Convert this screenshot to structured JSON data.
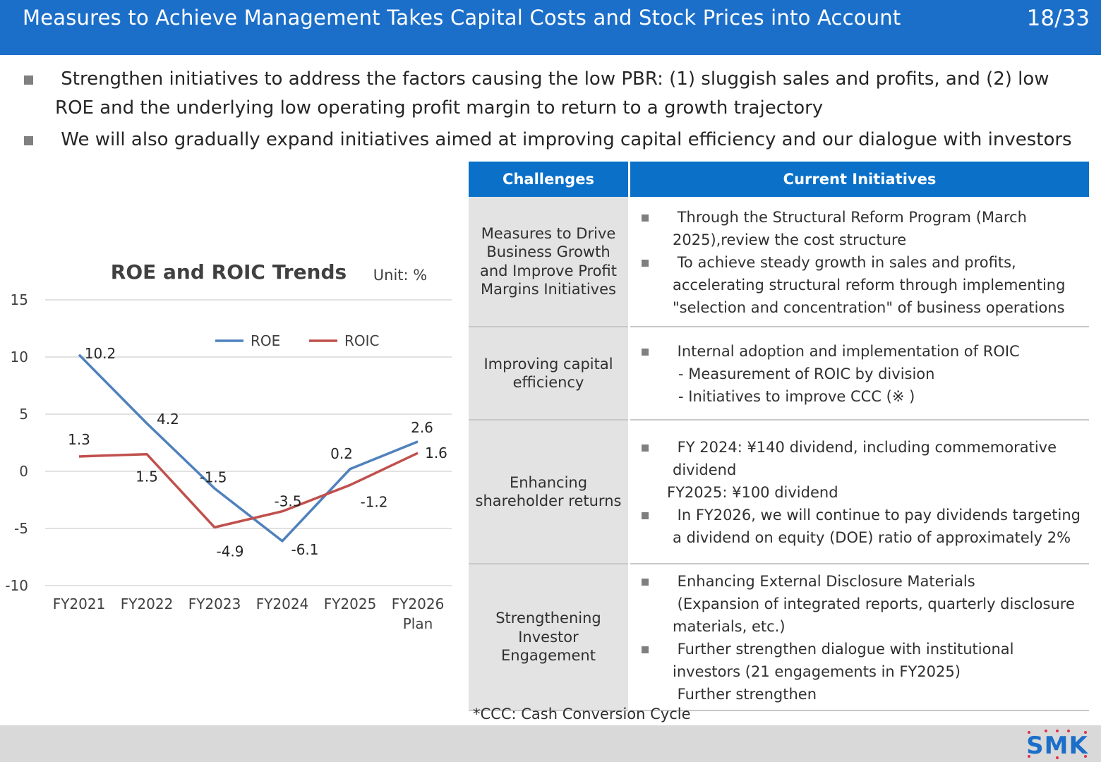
{
  "header": {
    "title": "Measures to Achieve Management Takes Capital Costs and Stock Prices into Account",
    "page": "18/33"
  },
  "bullets": [
    " Strengthen initiatives to address the factors causing the low PBR: (1) sluggish sales and profits, and (2) low ROE and the underlying low operating profit margin to return to a growth trajectory",
    " We will also gradually expand initiatives aimed at improving capital efficiency and our dialogue with investors"
  ],
  "chart_data": {
    "type": "line",
    "title": "ROE and ROIC Trends",
    "unit": "Unit: %",
    "categories": [
      "FY2021",
      "FY2022",
      "FY2023",
      "FY2024",
      "FY2025",
      "FY2026\nPlan"
    ],
    "series": [
      {
        "name": "ROE",
        "color": "#4f81bd",
        "values": [
          10.2,
          4.2,
          -1.5,
          -6.1,
          0.2,
          2.6
        ]
      },
      {
        "name": "ROIC",
        "color": "#c0504d",
        "values": [
          1.3,
          1.5,
          -4.9,
          -3.5,
          -1.2,
          1.6
        ]
      }
    ],
    "ylim": [
      -10,
      15
    ],
    "yticks": [
      15,
      10,
      5,
      0,
      -5,
      -10
    ],
    "grid": true,
    "legend": "top-center"
  },
  "table": {
    "headers": [
      "Challenges",
      "Current Initiatives"
    ],
    "rows": [
      {
        "challenge": "Measures to Drive Business Growth and Improve Profit Margins Initiatives",
        "b1": " Through the Structural Reform Program (March 2025),review the cost structure",
        "b2": " To achieve steady growth in sales and profits, accelerating structural reform through implementing \"selection and concentration\" of business operations"
      },
      {
        "challenge": "Improving capital efficiency",
        "b1": " Internal adoption and implementation of ROIC",
        "s1": "- Measurement of ROIC by division",
        "s2": "- Initiatives to improve CCC (※ )"
      },
      {
        "challenge": "Enhancing shareholder returns",
        "b1": " FY 2024: ¥140 dividend, including commemorative dividend",
        "line": "FY2025: ¥100 dividend",
        "b2": " In FY2026, we will continue to pay dividends targeting a dividend on equity (DOE) ratio of approximately 2%"
      },
      {
        "challenge": "Strengthening Investor Engagement",
        "b1": " Enhancing External Disclosure Materials",
        "b1c": " (Expansion of integrated reports, quarterly disclosure materials, etc.)",
        "b2": " Further strengthen dialogue with institutional investors (21 engagements in FY2025)",
        "b2c": " Further strengthen"
      }
    ]
  },
  "footnote": "*CCC: Cash Conversion Cycle",
  "logo": {
    "text": "SMK",
    "color": "#1b6fc9",
    "dot_color": "#e0304a"
  }
}
